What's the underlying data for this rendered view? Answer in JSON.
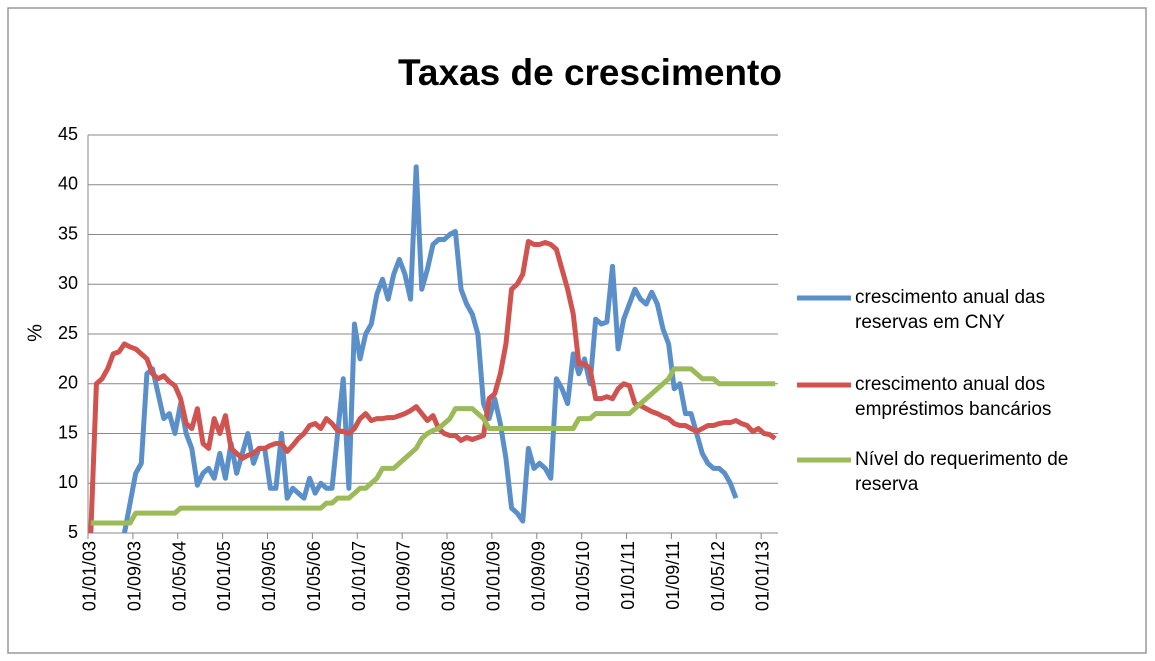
{
  "chart_data": {
    "type": "line",
    "title": "Taxas de crescimento",
    "y_label": "%",
    "categories": [
      "01/01/03",
      null,
      null,
      null,
      null,
      null,
      null,
      null,
      "01/09/03",
      null,
      null,
      null,
      null,
      null,
      null,
      null,
      "01/05/04",
      null,
      null,
      null,
      null,
      null,
      null,
      null,
      "01/01/05",
      null,
      null,
      null,
      null,
      null,
      null,
      null,
      "01/09/05",
      null,
      null,
      null,
      null,
      null,
      null,
      null,
      "01/05/06",
      null,
      null,
      null,
      null,
      null,
      null,
      null,
      "01/01/07",
      null,
      null,
      null,
      null,
      null,
      null,
      null,
      "01/09/07",
      null,
      null,
      null,
      null,
      null,
      null,
      null,
      "01/05/08",
      null,
      null,
      null,
      null,
      null,
      null,
      null,
      "01/01/09",
      null,
      null,
      null,
      null,
      null,
      null,
      null,
      "01/09/09",
      null,
      null,
      null,
      null,
      null,
      null,
      null,
      "01/05/10",
      null,
      null,
      null,
      null,
      null,
      null,
      null,
      "01/01/11",
      null,
      null,
      null,
      null,
      null,
      null,
      null,
      "01/09/11",
      null,
      null,
      null,
      null,
      null,
      null,
      null,
      "01/05/12",
      null,
      null,
      null,
      null,
      null,
      null,
      null,
      "01/01/13",
      null,
      null
    ],
    "series": [
      {
        "name": "crescimento anual das reservas em CNY",
        "color": "#5b8fc9",
        "values": [
          null,
          null,
          null,
          null,
          null,
          null,
          5,
          8,
          11,
          12,
          21,
          21.5,
          19,
          16.5,
          17,
          15,
          18,
          15,
          13.5,
          9.8,
          11,
          11.5,
          10.5,
          13,
          10.5,
          14,
          11,
          13,
          15,
          12,
          13.5,
          13.5,
          9.5,
          9.5,
          15,
          8.5,
          9.5,
          9,
          8.5,
          10.5,
          9,
          10,
          9.5,
          9.5,
          15,
          20.5,
          9.5,
          26,
          22.5,
          25,
          26,
          29,
          30.5,
          28.5,
          31,
          32.5,
          31,
          28.5,
          41.8,
          29.5,
          31.5,
          34,
          34.5,
          34.5,
          35,
          35.3,
          29.5,
          28,
          27,
          25,
          18,
          16.5,
          18.5,
          16,
          12.5,
          7.5,
          7,
          6.2,
          13.5,
          11.5,
          12,
          11.5,
          10.5,
          20.5,
          19.5,
          18,
          23,
          21,
          22.5,
          20,
          26.5,
          26,
          26.2,
          31.8,
          23.5,
          26.5,
          28,
          29.5,
          28.5,
          28,
          29.2,
          28,
          25.5,
          24,
          19.5,
          20,
          17,
          17,
          15,
          13,
          12,
          11.5,
          11.5,
          11,
          10,
          8.5,
          null,
          null,
          null,
          null,
          null,
          null,
          null
        ]
      },
      {
        "name": "crescimento anual dos empréstimos bancários",
        "color": "#d0534f",
        "values": [
          5,
          20,
          20.5,
          21.5,
          23,
          23.2,
          24,
          23.7,
          23.5,
          23,
          22.5,
          21,
          20.5,
          20.8,
          20.2,
          19.8,
          18.5,
          16,
          15.5,
          17.5,
          14,
          13.5,
          16.5,
          15,
          16.8,
          13.5,
          13,
          12.5,
          12.8,
          13,
          13.5,
          13.5,
          13.8,
          14,
          14,
          13.2,
          13.8,
          14.5,
          15,
          15.8,
          16,
          15.5,
          16.5,
          16,
          15.3,
          15.2,
          15,
          15.5,
          16.5,
          17,
          16.3,
          16.5,
          16.5,
          16.6,
          16.6,
          16.8,
          17,
          17.3,
          17.7,
          17,
          16.3,
          16.8,
          15.5,
          15,
          14.8,
          14.8,
          14.3,
          14.6,
          14.4,
          14.6,
          14.8,
          18.5,
          19,
          21,
          24,
          29.5,
          30,
          31,
          34.3,
          34,
          34,
          34.2,
          34,
          33.5,
          31.5,
          29.5,
          27,
          22,
          22,
          21.5,
          18.5,
          18.5,
          18.7,
          18.5,
          19.5,
          20,
          19.8,
          18,
          17.8,
          17.5,
          17.2,
          17,
          16.7,
          16.5,
          16,
          15.8,
          15.8,
          15.5,
          15.2,
          15.5,
          15.8,
          15.8,
          16,
          16.1,
          16.1,
          16.3,
          16,
          15.8,
          15.2,
          15.5,
          15,
          14.9,
          14.5
        ]
      },
      {
        "name": "Nível do requerimento de reserva",
        "color": "#9bbb59",
        "values": [
          6,
          6,
          6,
          6,
          6,
          6,
          6,
          6,
          7,
          7,
          7,
          7,
          7,
          7,
          7,
          7,
          7.5,
          7.5,
          7.5,
          7.5,
          7.5,
          7.5,
          7.5,
          7.5,
          7.5,
          7.5,
          7.5,
          7.5,
          7.5,
          7.5,
          7.5,
          7.5,
          7.5,
          7.5,
          7.5,
          7.5,
          7.5,
          7.5,
          7.5,
          7.5,
          7.5,
          7.5,
          8,
          8,
          8.5,
          8.5,
          8.5,
          9,
          9.5,
          9.5,
          10,
          10.5,
          11.5,
          11.5,
          11.5,
          12,
          12.5,
          13,
          13.5,
          14.5,
          15,
          15.3,
          15.5,
          16,
          16.5,
          17.5,
          17.5,
          17.5,
          17.5,
          17,
          16.5,
          15.5,
          15.5,
          15.5,
          15.5,
          15.5,
          15.5,
          15.5,
          15.5,
          15.5,
          15.5,
          15.5,
          15.5,
          15.5,
          15.5,
          15.5,
          15.5,
          16.5,
          16.5,
          16.5,
          17,
          17,
          17,
          17,
          17,
          17,
          17,
          17.5,
          18,
          18.5,
          19,
          19.5,
          20,
          20.5,
          21.5,
          21.5,
          21.5,
          21.5,
          21,
          20.5,
          20.5,
          20.5,
          20,
          20,
          20,
          20,
          20,
          20,
          20,
          20,
          20,
          20,
          20
        ]
      }
    ],
    "ylim": [
      5,
      45
    ],
    "yticks": [
      5,
      10,
      15,
      20,
      25,
      30,
      35,
      40,
      45
    ],
    "grid": true,
    "legend": "right"
  }
}
